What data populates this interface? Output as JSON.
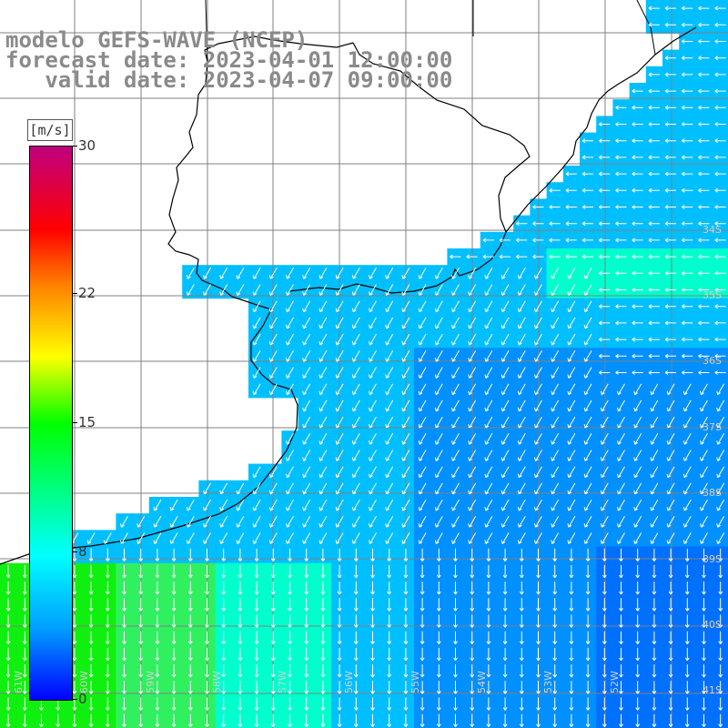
{
  "title": {
    "line1": "modelo GEFS-WAVE (NCEP)",
    "line2": "forecast date: 2023-04-01 12:00:00",
    "line3": "   valid date: 2023-04-07 09:00:00"
  },
  "colorbar": {
    "units": "[m/s]",
    "labels": [
      "30",
      "22",
      "15",
      "8",
      "0"
    ],
    "label_values": [
      30,
      22,
      15,
      8,
      0
    ],
    "range": [
      0,
      30
    ],
    "colors": [
      "#0000ff",
      "#00a0ff",
      "#00ffff",
      "#00ff00",
      "#ffff00",
      "#ff8000",
      "#ff0000",
      "#c0007f"
    ]
  },
  "map": {
    "lat_labels": [
      "34S",
      "35S",
      "36S",
      "37S",
      "38S",
      "39S",
      "40S",
      "41S"
    ],
    "lon_labels": [
      "61W",
      "60W",
      "59W",
      "58W",
      "57W",
      "56W",
      "55W",
      "54W",
      "53W",
      "52W"
    ],
    "land_color": "#ffffff",
    "grid_color": "#808080",
    "coast_color": "#000000",
    "arrow_color": "#ffffff"
  }
}
